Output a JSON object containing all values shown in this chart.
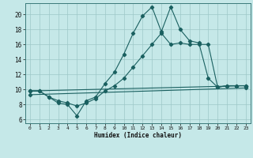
{
  "xlabel": "Humidex (Indice chaleur)",
  "bg_color": "#c5e8e8",
  "grid_color": "#9dc8c8",
  "line_color": "#1a6060",
  "xlim": [
    -0.5,
    23.5
  ],
  "ylim": [
    5.5,
    21.5
  ],
  "yticks": [
    6,
    8,
    10,
    12,
    14,
    16,
    18,
    20
  ],
  "xticks": [
    0,
    1,
    2,
    3,
    4,
    5,
    6,
    7,
    8,
    9,
    10,
    11,
    12,
    13,
    14,
    15,
    16,
    17,
    18,
    19,
    20,
    21,
    22,
    23
  ],
  "line1_x": [
    0,
    1,
    2,
    3,
    4,
    5,
    6,
    7,
    8,
    9,
    10,
    11,
    12,
    13,
    14,
    15,
    16,
    17,
    18,
    19,
    20,
    21,
    22,
    23
  ],
  "line1_y": [
    9.8,
    9.8,
    9.0,
    8.2,
    8.0,
    6.5,
    8.5,
    9.0,
    10.8,
    12.3,
    14.7,
    17.5,
    19.8,
    21.0,
    17.7,
    21.0,
    18.0,
    16.5,
    16.2,
    11.5,
    10.3,
    10.5,
    10.5,
    10.5
  ],
  "line2_x": [
    0,
    1,
    2,
    3,
    4,
    5,
    6,
    7,
    8,
    9,
    10,
    11,
    12,
    13,
    14,
    15,
    16,
    17,
    18,
    19,
    20,
    21,
    22,
    23
  ],
  "line2_y": [
    9.8,
    9.8,
    9.0,
    8.5,
    8.2,
    7.8,
    8.2,
    8.8,
    9.8,
    10.5,
    11.5,
    13.0,
    14.5,
    16.0,
    17.5,
    16.0,
    16.2,
    16.0,
    16.0,
    16.0,
    10.3,
    10.5,
    10.5,
    10.5
  ],
  "line3_x": [
    0,
    23
  ],
  "line3_y": [
    9.8,
    10.5
  ],
  "line4_x": [
    0,
    23
  ],
  "line4_y": [
    9.3,
    10.2
  ]
}
